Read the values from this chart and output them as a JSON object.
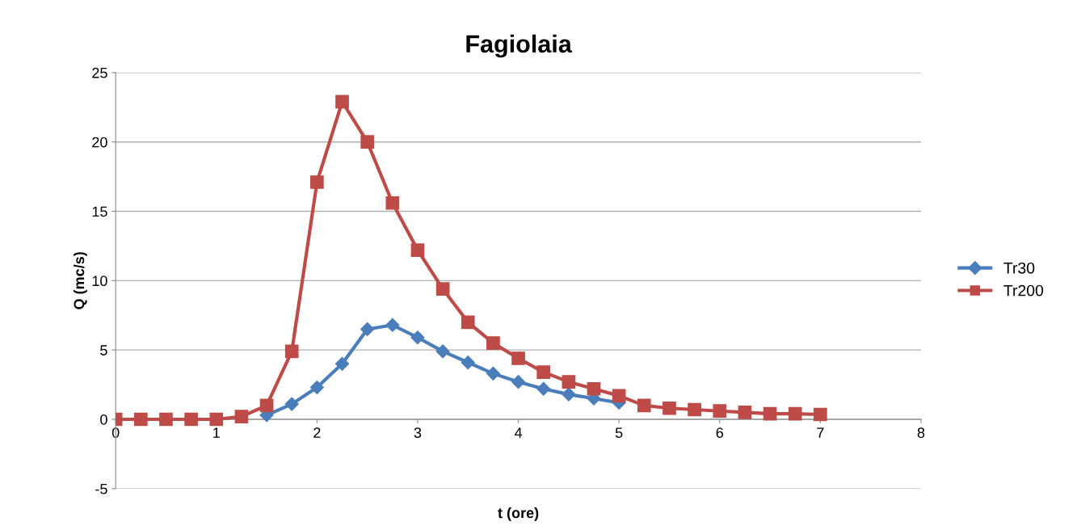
{
  "chart_data": {
    "type": "line",
    "title": "Fagiolaia",
    "xlabel": "t (ore)",
    "ylabel": "Q (mc/s)",
    "x": [
      0,
      0.25,
      0.5,
      0.75,
      1,
      1.25,
      1.5,
      1.75,
      2,
      2.25,
      2.5,
      2.75,
      3,
      3.25,
      3.5,
      3.75,
      4,
      4.25,
      4.5,
      4.75,
      5,
      5.25,
      5.5,
      5.75,
      6,
      6.25,
      6.5,
      6.75,
      7
    ],
    "series": [
      {
        "name": "Tr30",
        "color": "#4a7ebb",
        "marker": "diamond",
        "values": [
          null,
          null,
          null,
          null,
          null,
          null,
          0.3,
          1.1,
          2.3,
          4.0,
          6.5,
          6.8,
          5.9,
          4.9,
          4.1,
          3.3,
          2.7,
          2.2,
          1.8,
          1.5,
          1.2,
          null,
          null,
          null,
          null,
          null,
          null,
          null,
          null
        ]
      },
      {
        "name": "Tr200",
        "color": "#be4b48",
        "marker": "square",
        "values": [
          0,
          0,
          0,
          0,
          0,
          0.2,
          1.0,
          4.9,
          17.1,
          22.9,
          20.0,
          15.6,
          12.2,
          9.4,
          7.0,
          5.5,
          4.4,
          3.4,
          2.7,
          2.2,
          1.7,
          1.0,
          0.8,
          0.7,
          0.6,
          0.5,
          0.4,
          0.4,
          0.35
        ]
      }
    ],
    "xlim": [
      0,
      8
    ],
    "xticks": [
      0,
      1,
      2,
      3,
      4,
      5,
      6,
      7,
      8
    ],
    "ylim": [
      -5,
      25
    ],
    "yticks": [
      -5,
      0,
      5,
      10,
      15,
      20,
      25
    ],
    "grid": "y",
    "legend": "right"
  }
}
